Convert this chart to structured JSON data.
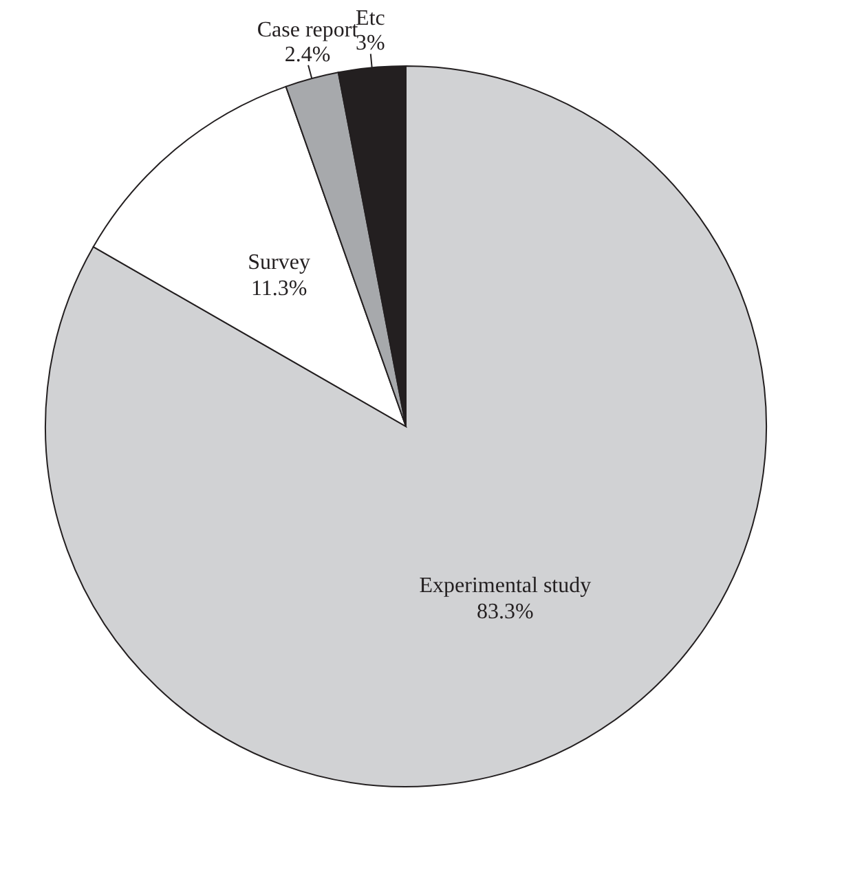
{
  "chart_data": {
    "type": "pie",
    "categories": [
      "Experimental study",
      "Survey",
      "Case report",
      "Etc"
    ],
    "values": [
      83.3,
      11.3,
      2.4,
      3
    ],
    "value_labels": [
      "83.3%",
      "11.3%",
      "2.4%",
      "3%"
    ],
    "colors": [
      "#d1d2d4",
      "#ffffff",
      "#a7a9ac",
      "#231f20"
    ],
    "legend": false
  }
}
